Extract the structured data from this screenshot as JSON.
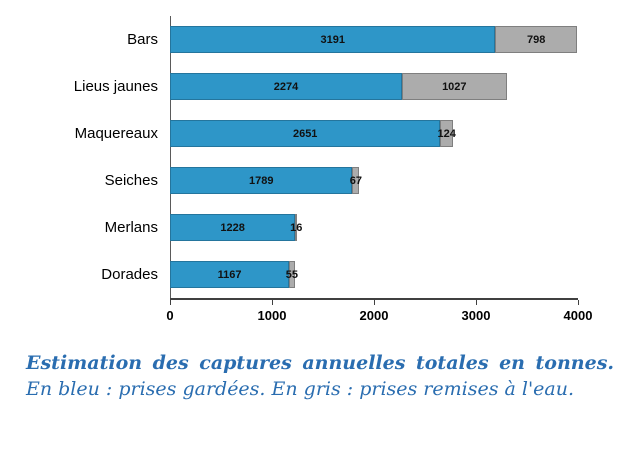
{
  "chart_data": {
    "type": "bar",
    "orientation": "horizontal",
    "stacked": true,
    "categories": [
      "Bars",
      "Lieus jaunes",
      "Maquereaux",
      "Seiches",
      "Merlans",
      "Dorades"
    ],
    "series": [
      {
        "name": "prises gardées",
        "color": "#2E96C8",
        "border_color": "#24759D",
        "values": [
          3191,
          2274,
          2651,
          1789,
          1228,
          1167
        ]
      },
      {
        "name": "prises remises à l'eau",
        "color": "#ACACAC",
        "border_color": "#7F7F7F",
        "values": [
          798,
          1027,
          124,
          67,
          16,
          55
        ]
      }
    ],
    "xlim": [
      0,
      4000
    ],
    "x_ticks": [
      0,
      1000,
      2000,
      3000,
      4000
    ],
    "grid": false,
    "legend": "described-in-caption"
  },
  "caption": {
    "bold_part": "Estimation des captures annuelles totales en tonnes.",
    "regular_part": "En bleu : prises gardées. En gris : prises remises à l'eau."
  }
}
